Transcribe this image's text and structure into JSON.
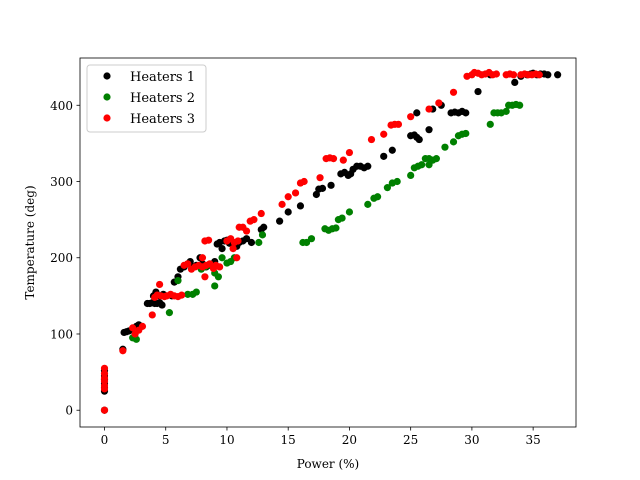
{
  "chart_data": {
    "type": "scatter",
    "title": "",
    "xlabel": "Power (%)",
    "ylabel": "Temperature (deg)",
    "xlim": [
      -2,
      38.5
    ],
    "ylim": [
      -22,
      462
    ],
    "xticks": [
      0,
      5,
      10,
      15,
      20,
      25,
      30,
      35
    ],
    "yticks": [
      0,
      100,
      200,
      300,
      400
    ],
    "legend_position": "upper-left",
    "series": [
      {
        "name": "Heaters 1",
        "color": "#000000",
        "points": [
          [
            0,
            0
          ],
          [
            0,
            25
          ],
          [
            0,
            30
          ],
          [
            0,
            35
          ],
          [
            0,
            40
          ],
          [
            0,
            45
          ],
          [
            0,
            52
          ],
          [
            1.5,
            80
          ],
          [
            1.6,
            102
          ],
          [
            1.8,
            103
          ],
          [
            2.0,
            104
          ],
          [
            2.6,
            110
          ],
          [
            2.8,
            112
          ],
          [
            3.5,
            140
          ],
          [
            3.7,
            140
          ],
          [
            3.9,
            141
          ],
          [
            4.1,
            140
          ],
          [
            4.3,
            140
          ],
          [
            4.5,
            141
          ],
          [
            4.7,
            138
          ],
          [
            4.0,
            150
          ],
          [
            4.2,
            155
          ],
          [
            4.5,
            150
          ],
          [
            4.8,
            152
          ],
          [
            5.0,
            150
          ],
          [
            5.5,
            150
          ],
          [
            5.7,
            168
          ],
          [
            6.0,
            175
          ],
          [
            6.2,
            185
          ],
          [
            6.5,
            188
          ],
          [
            6.8,
            192
          ],
          [
            7.0,
            195
          ],
          [
            7.2,
            188
          ],
          [
            7.5,
            190
          ],
          [
            7.8,
            200
          ],
          [
            8.0,
            192
          ],
          [
            8.3,
            188
          ],
          [
            8.5,
            190
          ],
          [
            9.0,
            195
          ],
          [
            9.2,
            218
          ],
          [
            9.4,
            220
          ],
          [
            9.6,
            212
          ],
          [
            9.8,
            222
          ],
          [
            10.0,
            223
          ],
          [
            10.2,
            219
          ],
          [
            10.5,
            220
          ],
          [
            10.8,
            215
          ],
          [
            11.0,
            220
          ],
          [
            11.3,
            222
          ],
          [
            11.6,
            225
          ],
          [
            12.0,
            220
          ],
          [
            12.8,
            237
          ],
          [
            13.0,
            240
          ],
          [
            14.3,
            248
          ],
          [
            15.0,
            260
          ],
          [
            16.0,
            268
          ],
          [
            17.3,
            283
          ],
          [
            17.5,
            290
          ],
          [
            17.8,
            291
          ],
          [
            18.5,
            295
          ],
          [
            19.3,
            310
          ],
          [
            19.6,
            312
          ],
          [
            19.9,
            308
          ],
          [
            20.1,
            310
          ],
          [
            20.3,
            316
          ],
          [
            20.6,
            320
          ],
          [
            20.9,
            320
          ],
          [
            21.2,
            318
          ],
          [
            21.5,
            320
          ],
          [
            22.8,
            333
          ],
          [
            23.5,
            341
          ],
          [
            25.0,
            360
          ],
          [
            25.3,
            361
          ],
          [
            25.5,
            358
          ],
          [
            25.7,
            355
          ],
          [
            25.5,
            390
          ],
          [
            26.5,
            368
          ],
          [
            26.8,
            395
          ],
          [
            27.5,
            400
          ],
          [
            28.3,
            390
          ],
          [
            28.6,
            391
          ],
          [
            28.9,
            390
          ],
          [
            29.2,
            392
          ],
          [
            29.5,
            390
          ],
          [
            30.5,
            418
          ],
          [
            31.5,
            440
          ],
          [
            33.5,
            430
          ],
          [
            34.0,
            438
          ],
          [
            34.5,
            440
          ],
          [
            34.8,
            441
          ],
          [
            35.0,
            442
          ],
          [
            35.3,
            440
          ],
          [
            35.6,
            441
          ],
          [
            35.9,
            441
          ],
          [
            36.2,
            440
          ],
          [
            37.0,
            440
          ]
        ]
      },
      {
        "name": "Heaters 2",
        "color": "#008000",
        "points": [
          [
            2.3,
            95
          ],
          [
            2.6,
            93
          ],
          [
            5.3,
            128
          ],
          [
            6.0,
            170
          ],
          [
            6.8,
            152
          ],
          [
            7.2,
            152
          ],
          [
            7.5,
            155
          ],
          [
            7.9,
            185
          ],
          [
            8.2,
            188
          ],
          [
            8.6,
            190
          ],
          [
            9.0,
            180
          ],
          [
            9.3,
            175
          ],
          [
            9.0,
            163
          ],
          [
            9.6,
            200
          ],
          [
            10.0,
            193
          ],
          [
            10.3,
            195
          ],
          [
            10.6,
            200
          ],
          [
            12.6,
            220
          ],
          [
            12.9,
            230
          ],
          [
            16.2,
            220
          ],
          [
            16.5,
            220
          ],
          [
            16.9,
            225
          ],
          [
            18.0,
            238
          ],
          [
            18.3,
            236
          ],
          [
            18.6,
            238
          ],
          [
            18.9,
            239
          ],
          [
            19.1,
            250
          ],
          [
            19.4,
            252
          ],
          [
            20.0,
            260
          ],
          [
            21.5,
            270
          ],
          [
            22.0,
            278
          ],
          [
            22.3,
            280
          ],
          [
            23.1,
            292
          ],
          [
            23.5,
            298
          ],
          [
            23.9,
            300
          ],
          [
            25.0,
            308
          ],
          [
            25.3,
            318
          ],
          [
            25.6,
            320
          ],
          [
            25.9,
            322
          ],
          [
            26.2,
            330
          ],
          [
            26.5,
            330
          ],
          [
            26.8,
            328
          ],
          [
            27.1,
            330
          ],
          [
            26.5,
            322
          ],
          [
            27.8,
            345
          ],
          [
            28.5,
            352
          ],
          [
            28.9,
            360
          ],
          [
            29.2,
            362
          ],
          [
            29.5,
            363
          ],
          [
            31.5,
            375
          ],
          [
            31.8,
            390
          ],
          [
            32.1,
            390
          ],
          [
            32.4,
            390
          ],
          [
            32.8,
            392
          ],
          [
            33.0,
            400
          ],
          [
            33.3,
            400
          ],
          [
            33.6,
            401
          ],
          [
            33.9,
            400
          ]
        ]
      },
      {
        "name": "Heaters 3",
        "color": "#ff0000",
        "points": [
          [
            0,
            0
          ],
          [
            0,
            28
          ],
          [
            0,
            32
          ],
          [
            0,
            38
          ],
          [
            0,
            42
          ],
          [
            0,
            48
          ],
          [
            0,
            55
          ],
          [
            1.5,
            78
          ],
          [
            2.3,
            108
          ],
          [
            2.5,
            100
          ],
          [
            2.8,
            105
          ],
          [
            3.1,
            110
          ],
          [
            3.9,
            125
          ],
          [
            4.1,
            148
          ],
          [
            4.3,
            151
          ],
          [
            4.6,
            150
          ],
          [
            4.9,
            149
          ],
          [
            5.1,
            150
          ],
          [
            5.4,
            152
          ],
          [
            5.7,
            150
          ],
          [
            6.0,
            149
          ],
          [
            6.3,
            151
          ],
          [
            4.5,
            165
          ],
          [
            6.5,
            190
          ],
          [
            6.8,
            192
          ],
          [
            7.1,
            185
          ],
          [
            7.4,
            188
          ],
          [
            7.7,
            190
          ],
          [
            8.0,
            188
          ],
          [
            8.3,
            190
          ],
          [
            8.6,
            192
          ],
          [
            8.9,
            186
          ],
          [
            8.0,
            200
          ],
          [
            8.2,
            222
          ],
          [
            8.5,
            223
          ],
          [
            8.2,
            175
          ],
          [
            9.1,
            190
          ],
          [
            9.4,
            188
          ],
          [
            10.0,
            222
          ],
          [
            10.3,
            225
          ],
          [
            10.6,
            220
          ],
          [
            10.9,
            222
          ],
          [
            10.5,
            212
          ],
          [
            10.8,
            200
          ],
          [
            11.0,
            240
          ],
          [
            11.3,
            240
          ],
          [
            11.6,
            235
          ],
          [
            11.9,
            248
          ],
          [
            12.2,
            250
          ],
          [
            12.8,
            258
          ],
          [
            14.5,
            270
          ],
          [
            15.0,
            280
          ],
          [
            15.6,
            285
          ],
          [
            16.0,
            298
          ],
          [
            16.3,
            300
          ],
          [
            17.6,
            305
          ],
          [
            18.1,
            330
          ],
          [
            18.4,
            331
          ],
          [
            18.7,
            330
          ],
          [
            19.5,
            328
          ],
          [
            20.0,
            338
          ],
          [
            21.8,
            355
          ],
          [
            22.8,
            362
          ],
          [
            23.4,
            374
          ],
          [
            23.7,
            375
          ],
          [
            24.0,
            375
          ],
          [
            25.0,
            385
          ],
          [
            26.5,
            395
          ],
          [
            27.3,
            403
          ],
          [
            28.5,
            417
          ],
          [
            29.6,
            438
          ],
          [
            30.0,
            440
          ],
          [
            30.2,
            443
          ],
          [
            30.5,
            442
          ],
          [
            30.8,
            440
          ],
          [
            31.1,
            441
          ],
          [
            31.4,
            443
          ],
          [
            31.7,
            440
          ],
          [
            32.0,
            441
          ],
          [
            32.8,
            440
          ],
          [
            33.1,
            441
          ],
          [
            33.4,
            440
          ],
          [
            34.0,
            440
          ],
          [
            34.3,
            441
          ],
          [
            34.6,
            440
          ],
          [
            34.9,
            440
          ],
          [
            35.2,
            441
          ],
          [
            35.5,
            440
          ]
        ]
      }
    ]
  }
}
